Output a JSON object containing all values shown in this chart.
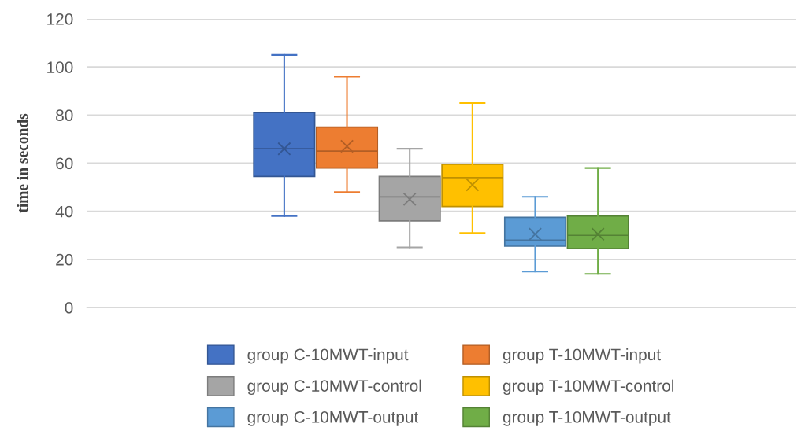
{
  "chart_data": {
    "type": "box",
    "ylabel": "time in seconds",
    "categories": [
      null
    ],
    "series": [
      {
        "name": "group C-10MWT-input",
        "color": "#4472c4",
        "boxes": [
          {
            "low": 38,
            "q1": 54.5,
            "median": 66,
            "q3": 81,
            "high": 105,
            "mean": 66
          }
        ]
      },
      {
        "name": "group T-10MWT-input",
        "color": "#ed7d31",
        "boxes": [
          {
            "low": 48,
            "q1": 58,
            "median": 65,
            "q3": 75,
            "high": 96,
            "mean": 67
          }
        ]
      },
      {
        "name": "group C-10MWT-control",
        "color": "#a5a5a5",
        "boxes": [
          {
            "low": 25,
            "q1": 36,
            "median": 46,
            "q3": 54.5,
            "high": 66,
            "mean": 45
          }
        ]
      },
      {
        "name": "group T-10MWT-control",
        "color": "#ffc000",
        "boxes": [
          {
            "low": 31,
            "q1": 42,
            "median": 54,
            "q3": 59.5,
            "high": 85,
            "mean": 51
          }
        ]
      },
      {
        "name": "group C-10MWT-output",
        "color": "#5b9bd5",
        "boxes": [
          {
            "low": 15,
            "q1": 25.5,
            "median": 28,
            "q3": 37.5,
            "high": 46,
            "mean": 30.5
          }
        ]
      },
      {
        "name": "group T-10MWT-output",
        "color": "#70ad47",
        "boxes": [
          {
            "low": 14,
            "q1": 24.5,
            "median": 30,
            "q3": 38,
            "high": 58,
            "mean": 30.5
          }
        ]
      }
    ],
    "ylim": [
      0,
      120
    ],
    "yticks": [
      0,
      20,
      40,
      60,
      80,
      100,
      120
    ],
    "grid": "y",
    "legend": "bottom",
    "marker": "cross"
  }
}
